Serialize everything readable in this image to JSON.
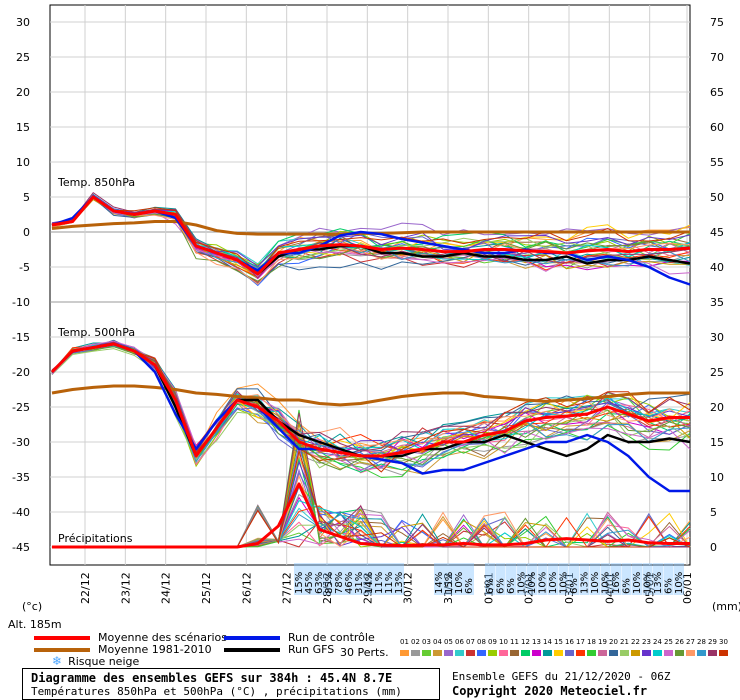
{
  "chart_data": {
    "type": "line",
    "title": "Diagramme des ensembles GEFS sur 384h : 45.4N 8.7E",
    "subtitle": "Températures 850hPa et 500hPa (°C) , précipitations (mm)",
    "left_axis_label": "(°c)",
    "right_axis_label": "(mm)",
    "left_ticks": [
      "30",
      "25",
      "20",
      "15",
      "10",
      "5",
      "0",
      "-5",
      "-10",
      "-15",
      "-20",
      "-25",
      "-30",
      "-35",
      "-40",
      "-45"
    ],
    "right_ticks": [
      "75",
      "70",
      "65",
      "60",
      "55",
      "50",
      "45",
      "40",
      "35",
      "30",
      "25",
      "20",
      "15",
      "10",
      "5",
      "0"
    ],
    "ylim_left": [
      -45,
      30
    ],
    "ylim_right": [
      0,
      75
    ],
    "x_ticks": [
      "22/12",
      "23/12",
      "24/12",
      "25/12",
      "26/12",
      "27/12",
      "28/12",
      "29/12",
      "30/12",
      "31/12",
      "01/01",
      "02/01",
      "03/01",
      "04/01",
      "05/01",
      "06/01"
    ],
    "panel_labels": {
      "t850": "Temp. 850hPa",
      "t500": "Temp. 500hPa",
      "precip": "Précipitations"
    },
    "snow_risk_top": [
      "15%",
      "45%",
      "63%",
      "85%",
      "78%",
      "46%",
      "31%",
      "14%",
      "11%",
      "11%",
      "13%"
    ],
    "snow_risk_mid": [
      "14%",
      "15%",
      "10%",
      "6%"
    ],
    "snow_risk_late": [
      "6%",
      "6%",
      "6%",
      "10%",
      "10%",
      "10%",
      "10%",
      "10%",
      "6%",
      "13%",
      "10%",
      "10%",
      "16%",
      "6%",
      "10%",
      "10%",
      "13%",
      "6%",
      "10%"
    ],
    "series": [
      {
        "name": "Moyenne des scénarios",
        "color": "#ff0000",
        "t850": [
          1,
          1.5,
          5,
          3,
          2.5,
          3,
          2.5,
          -2,
          -3,
          -4,
          -6,
          -3,
          -2.5,
          -2,
          -1.8,
          -2,
          -2.5,
          -2.3,
          -2.5,
          -2.8,
          -2.8,
          -2.5,
          -2.5,
          -2.7,
          -2.8,
          -3,
          -2.7,
          -2.5,
          -2.8,
          -2.5,
          -2.5,
          -2.3
        ],
        "t500": [
          -20,
          -17,
          -16.5,
          -16,
          -17,
          -19,
          -24,
          -32,
          -28,
          -24,
          -25,
          -27,
          -30,
          -31,
          -31.5,
          -32,
          -32,
          -31.5,
          -31,
          -30,
          -30,
          -29,
          -28.5,
          -27,
          -26.5,
          -26.3,
          -26,
          -25,
          -26,
          -27,
          -26.5,
          -26.5
        ],
        "precip": [
          0,
          0,
          0,
          0,
          0,
          0,
          0,
          0,
          0,
          0,
          0.5,
          3,
          9,
          2.5,
          1.5,
          0.5,
          0.3,
          0.2,
          0.3,
          0.3,
          0.5,
          0.3,
          0.3,
          0.5,
          1,
          1.2,
          1,
          0.8,
          1,
          0.6,
          0.5,
          0.5
        ]
      },
      {
        "name": "Moyenne 1981-2010",
        "color": "#b8620a",
        "t850": [
          0.5,
          0.8,
          1,
          1.2,
          1.3,
          1.5,
          1.5,
          1,
          0.2,
          -0.2,
          -0.3,
          -0.3,
          -0.3,
          -0.3,
          -0.3,
          -0.2,
          -0.2,
          -0.1,
          0,
          0,
          0,
          0,
          0,
          0,
          0,
          0,
          0,
          0,
          0,
          0,
          0,
          0
        ],
        "t500": [
          -23,
          -22.5,
          -22.2,
          -22,
          -22,
          -22.2,
          -22.5,
          -23,
          -23.2,
          -23.5,
          -23.7,
          -24,
          -24,
          -24.5,
          -24.7,
          -24.5,
          -24,
          -23.5,
          -23.2,
          -23,
          -23,
          -23.5,
          -23.7,
          -24,
          -24.2,
          -24,
          -23.8,
          -23.5,
          -23.2,
          -23,
          -23,
          -23
        ]
      },
      {
        "name": "Run de contrôle",
        "color": "#0018e8",
        "t850": [
          1,
          2,
          5,
          3,
          2.5,
          3,
          2,
          -2,
          -3,
          -4,
          -5.5,
          -3,
          -3,
          -2,
          -0.5,
          0,
          -0.3,
          -1,
          -1.5,
          -2,
          -2.5,
          -3,
          -3,
          -2.5,
          -3,
          -3,
          -4,
          -3.5,
          -4,
          -5,
          -6.5,
          -7.5
        ],
        "t500": [
          -20,
          -17,
          -16.5,
          -16,
          -17,
          -20,
          -26,
          -31,
          -27,
          -24,
          -25,
          -28,
          -31,
          -31,
          -31.5,
          -32,
          -32.5,
          -33,
          -34.5,
          -34,
          -34,
          -33,
          -32,
          -31,
          -30,
          -30,
          -29,
          -30,
          -32,
          -35,
          -37,
          -37
        ]
      },
      {
        "name": "Run GFS",
        "color": "#000000",
        "t850": [
          1,
          1.5,
          5,
          3,
          2.5,
          3,
          2.5,
          -2,
          -3,
          -4,
          -6,
          -3.5,
          -2.5,
          -2.5,
          -2,
          -2,
          -3,
          -3,
          -3.5,
          -3.5,
          -3,
          -3.5,
          -3.5,
          -4,
          -4,
          -3.5,
          -4.5,
          -4,
          -4,
          -3.5,
          -4,
          -4.5
        ],
        "t500": [
          -20,
          -17,
          -16.5,
          -16,
          -17,
          -19,
          -25,
          -32,
          -28,
          -24,
          -24,
          -27,
          -29,
          -30,
          -31,
          -32,
          -32,
          -32,
          -31,
          -31,
          -30,
          -30,
          -29,
          -30,
          -31,
          -32,
          -31,
          -29,
          -30,
          -30,
          -29.5,
          -30
        ]
      }
    ]
  },
  "legend": {
    "items": [
      {
        "label": "Moyenne des scénarios",
        "color": "#ff0000"
      },
      {
        "label": "Moyenne 1981-2010",
        "color": "#b8620a"
      },
      {
        "label": "Risque neige",
        "icon": "snowflake-icon"
      },
      {
        "label": "Run de contrôle",
        "color": "#0018e8"
      },
      {
        "label": "Run GFS",
        "color": "#000000"
      }
    ],
    "perts_label": "30 Perts.",
    "pert_numbers": [
      "01",
      "02",
      "03",
      "04",
      "05",
      "06",
      "07",
      "08",
      "09",
      "10",
      "11",
      "12",
      "13",
      "14",
      "15",
      "16",
      "17",
      "18",
      "19",
      "20",
      "21",
      "22",
      "23",
      "24",
      "25",
      "26",
      "27",
      "28",
      "29",
      "30"
    ],
    "pert_colors": [
      "#ff9933",
      "#999999",
      "#66cc33",
      "#cc9933",
      "#9966cc",
      "#33cccc",
      "#cc3333",
      "#3366ff",
      "#99cc00",
      "#ff6699",
      "#996633",
      "#00cc66",
      "#cc00cc",
      "#009999",
      "#ffcc00",
      "#6666cc",
      "#ff3300",
      "#33cc33",
      "#cc6699",
      "#336699",
      "#99cc66",
      "#cc9900",
      "#6633cc",
      "#00cccc",
      "#cc66cc",
      "#669933",
      "#ff9966",
      "#3399cc",
      "#993366",
      "#cc3300"
    ]
  },
  "footer": {
    "altitude": "Alt. 185m",
    "title": "Diagramme des ensembles GEFS sur 384h : 45.4N 8.7E",
    "subtitle": "Températures 850hPa et 500hPa (°C) , précipitations (mm)",
    "run_info": "Ensemble GEFS du 21/12/2020 - 06Z",
    "copyright": "Copyright 2020 Meteociel.fr"
  }
}
